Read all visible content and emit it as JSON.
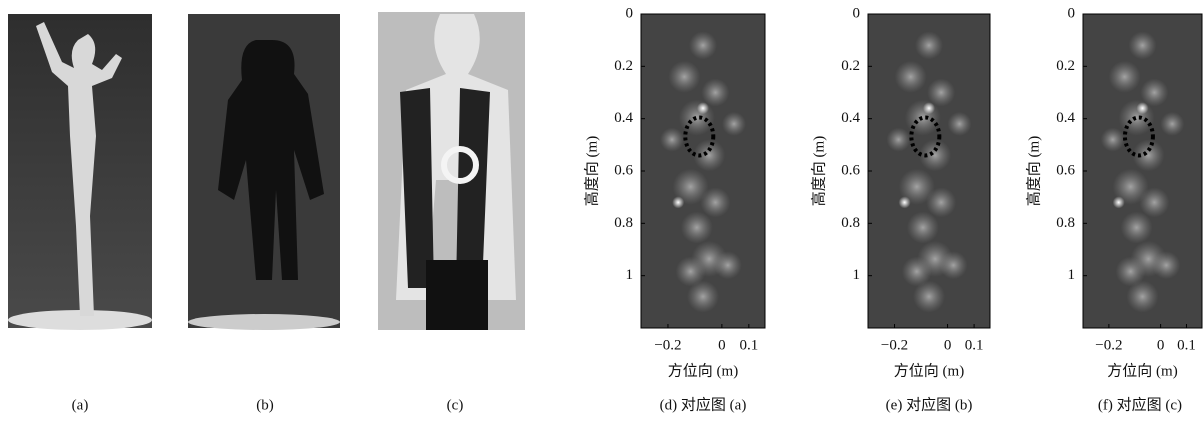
{
  "panels": [
    {
      "caption": "(a)"
    },
    {
      "caption": "(b)"
    },
    {
      "caption": "(c)"
    }
  ],
  "plots": [
    {
      "caption": "(d) 对应图 (a)",
      "x_label": "方位向 (m)",
      "y_label": "高度向 (m)",
      "xlim": [
        -0.3,
        0.16
      ],
      "ylim": [
        0,
        1.2
      ],
      "xticks": [
        {
          "value": -0.2,
          "label": "−0.2"
        },
        0,
        0.1
      ],
      "yticks": [
        0,
        0.2,
        0.4,
        0.6,
        0.8,
        1
      ]
    },
    {
      "caption": "(e) 对应图 (b)",
      "x_label": "方位向 (m)",
      "y_label": "高度向 (m)",
      "xlim": [
        -0.3,
        0.16
      ],
      "ylim": [
        0,
        1.2
      ],
      "xticks": [
        {
          "value": -0.2,
          "label": "−0.2"
        },
        0,
        0.1
      ],
      "yticks": [
        0,
        0.2,
        0.4,
        0.6,
        0.8,
        1
      ]
    },
    {
      "caption": "(f) 对应图 (c)",
      "x_label": "方位向 (m)",
      "y_label": "高度向 (m)",
      "xlim": [
        -0.3,
        0.16
      ],
      "ylim": [
        0,
        1.2
      ],
      "xticks": [
        {
          "value": -0.2,
          "label": "−0.2"
        },
        0,
        0.1
      ],
      "yticks": [
        0,
        0.2,
        0.4,
        0.6,
        0.8,
        1
      ]
    }
  ]
}
